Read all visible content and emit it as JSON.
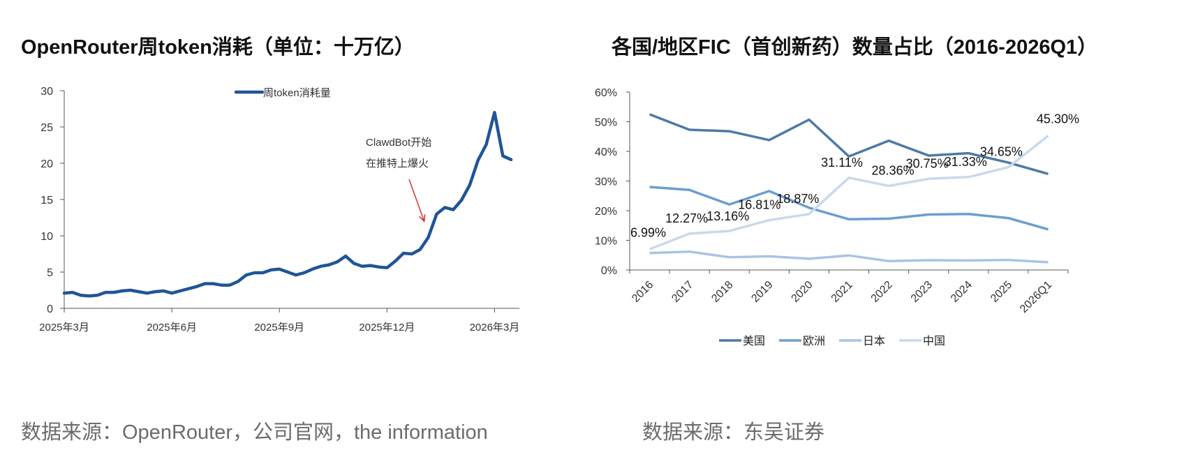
{
  "left": {
    "title": "OpenRouter周token消耗（单位：十万亿）",
    "source": "数据来源：OpenRouter，公司官网，the information"
  },
  "right": {
    "title": "各国/地区FIC（首创新药）数量占比（2016-2026Q1）",
    "source": "数据来源：东吴证券"
  },
  "chart_data": [
    {
      "type": "line",
      "title": "OpenRouter周token消耗（单位：十万亿）",
      "ylim": [
        0,
        30
      ],
      "yticks": [
        0,
        5,
        10,
        15,
        20,
        25,
        30
      ],
      "xlim": [
        0,
        55
      ],
      "xticks": [
        {
          "x": 0,
          "label": "2025年3月"
        },
        {
          "x": 13,
          "label": "2025年6月"
        },
        {
          "x": 26,
          "label": "2025年9月"
        },
        {
          "x": 39,
          "label": "2025年12月"
        },
        {
          "x": 52,
          "label": "2026年3月"
        }
      ],
      "legend": "top-center",
      "color": "#1f5596",
      "annotation": {
        "lines": [
          "ClawdBot开始",
          "在推特上爆火"
        ],
        "arrow_target": {
          "x": 43.5,
          "y": 12
        }
      },
      "series": [
        {
          "name": "周token消耗量",
          "x": [
            0,
            1,
            2,
            3,
            4,
            5,
            6,
            7,
            8,
            9,
            10,
            11,
            12,
            13,
            14,
            15,
            16,
            17,
            18,
            19,
            20,
            21,
            22,
            23,
            24,
            25,
            26,
            27,
            28,
            29,
            30,
            31,
            32,
            33,
            34,
            35,
            36,
            37,
            38,
            39,
            40,
            41,
            42,
            43,
            44,
            45,
            46,
            47,
            48,
            49,
            50,
            51,
            52,
            53,
            54
          ],
          "values": [
            2.1,
            2.2,
            1.8,
            1.7,
            1.8,
            2.2,
            2.2,
            2.4,
            2.5,
            2.3,
            2.1,
            2.3,
            2.4,
            2.1,
            2.4,
            2.7,
            3.0,
            3.4,
            3.4,
            3.2,
            3.2,
            3.7,
            4.6,
            4.9,
            4.9,
            5.3,
            5.4,
            5.0,
            4.6,
            4.9,
            5.4,
            5.8,
            6.0,
            6.4,
            7.2,
            6.2,
            5.8,
            5.9,
            5.7,
            5.6,
            6.5,
            7.6,
            7.5,
            8.1,
            9.8,
            13.0,
            13.9,
            13.6,
            14.9,
            17.0,
            20.4,
            22.6,
            27.0,
            21.0,
            20.5
          ]
        }
      ]
    },
    {
      "type": "line",
      "title": "各国/地区FIC（首创新药）数量占比（2016-2026Q1）",
      "categories": [
        "2016",
        "2017",
        "2018",
        "2019",
        "2020",
        "2021",
        "2022",
        "2023",
        "2024",
        "2025",
        "2026Q1"
      ],
      "ylim": [
        0,
        60
      ],
      "yticks": [
        "0%",
        "10%",
        "20%",
        "30%",
        "40%",
        "50%",
        "60%"
      ],
      "legend": "bottom-center",
      "series": [
        {
          "name": "美国",
          "color": "#4e79a7",
          "values": [
            52.5,
            47.3,
            46.8,
            43.8,
            50.7,
            38.3,
            43.6,
            38.6,
            39.4,
            36.2,
            32.4
          ]
        },
        {
          "name": "欧洲",
          "color": "#6a9fd0",
          "values": [
            28.0,
            27.0,
            22.1,
            26.6,
            21.0,
            17.1,
            17.3,
            18.7,
            18.9,
            17.5,
            13.7
          ]
        },
        {
          "name": "日本",
          "color": "#a9c4e2",
          "values": [
            5.7,
            6.2,
            4.3,
            4.6,
            3.8,
            4.9,
            3.0,
            3.3,
            3.2,
            3.4,
            2.6
          ]
        },
        {
          "name": "中国",
          "color": "#c8daec",
          "values": [
            6.99,
            12.27,
            13.16,
            16.81,
            18.87,
            31.11,
            28.36,
            30.75,
            31.33,
            34.65,
            45.3
          ],
          "data_labels": [
            "6.99%",
            "12.27%",
            "13.16%",
            "16.81%",
            "18.87%",
            "31.11%",
            "28.36%",
            "30.75%",
            "31.33%",
            "34.65%",
            "45.30%"
          ]
        }
      ]
    }
  ]
}
